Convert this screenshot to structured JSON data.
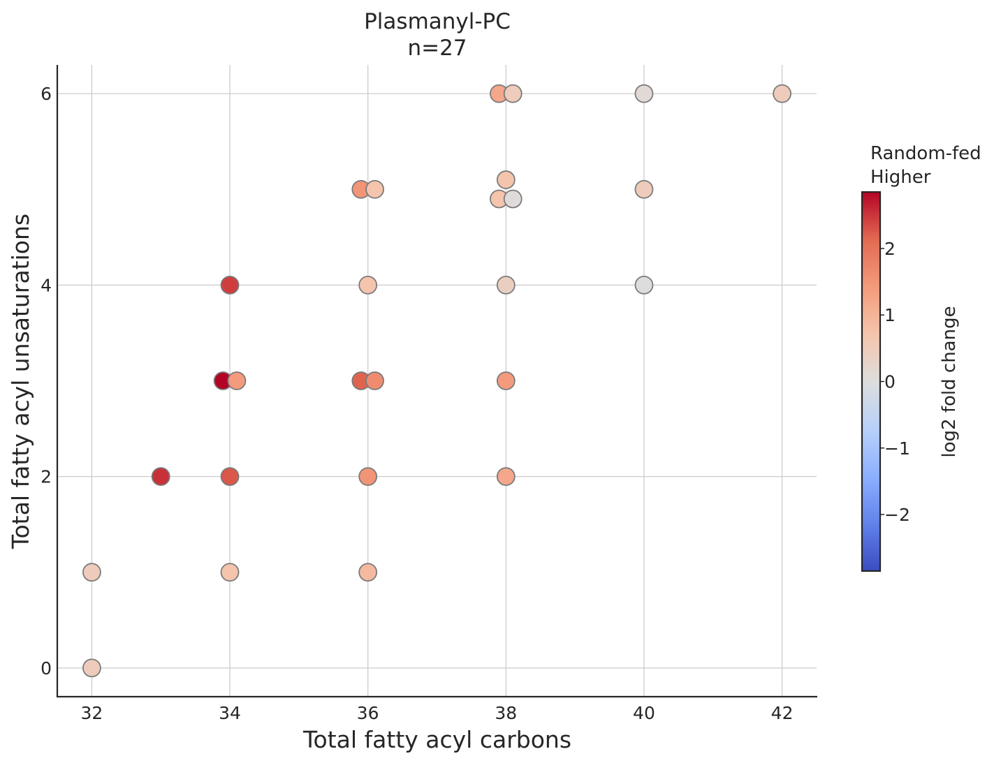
{
  "chart_data": {
    "type": "scatter",
    "title": "Plasmanyl-PC",
    "subtitle": "n=27",
    "xlabel": "Total fatty acyl carbons",
    "ylabel": "Total fatty acyl unsaturations",
    "xlim": [
      31.5,
      42.5
    ],
    "ylim": [
      -0.3,
      6.3
    ],
    "xticks": [
      32,
      34,
      36,
      38,
      40,
      42
    ],
    "yticks": [
      0,
      2,
      4,
      6
    ],
    "grid": true,
    "colormap": "coolwarm",
    "colorbar": {
      "label": "log2 fold change",
      "title_lines": [
        "Random-fed",
        "Higher"
      ],
      "range": [
        -2.85,
        2.85
      ],
      "ticks": [
        -2,
        -1,
        0,
        1,
        2
      ],
      "tick_labels": [
        "−2",
        "−1",
        "0",
        "1",
        "2"
      ]
    },
    "points": [
      {
        "x": 32,
        "y": 0,
        "value": 0.5
      },
      {
        "x": 32,
        "y": 1,
        "value": 0.5
      },
      {
        "x": 33,
        "y": 2,
        "value": 2.5
      },
      {
        "x": 34,
        "y": 2,
        "value": 2.2
      },
      {
        "x": 33.9,
        "y": 3,
        "value": 2.85
      },
      {
        "x": 34.1,
        "y": 3,
        "value": 1.4
      },
      {
        "x": 34,
        "y": 4,
        "value": 2.4
      },
      {
        "x": 34,
        "y": 1,
        "value": 0.7
      },
      {
        "x": 36,
        "y": 1,
        "value": 0.9
      },
      {
        "x": 36,
        "y": 2,
        "value": 1.5
      },
      {
        "x": 35.9,
        "y": 3,
        "value": 2.1
      },
      {
        "x": 36.1,
        "y": 3,
        "value": 1.6
      },
      {
        "x": 36,
        "y": 4,
        "value": 0.7
      },
      {
        "x": 35.9,
        "y": 5,
        "value": 1.5
      },
      {
        "x": 36.1,
        "y": 5,
        "value": 0.7
      },
      {
        "x": 38,
        "y": 2,
        "value": 1.2
      },
      {
        "x": 38,
        "y": 3,
        "value": 1.4
      },
      {
        "x": 38,
        "y": 4,
        "value": 0.4
      },
      {
        "x": 37.9,
        "y": 4.9,
        "value": 0.7
      },
      {
        "x": 38.1,
        "y": 4.9,
        "value": 0.05
      },
      {
        "x": 38,
        "y": 5.1,
        "value": 0.7
      },
      {
        "x": 37.9,
        "y": 6,
        "value": 1.2
      },
      {
        "x": 38.1,
        "y": 6,
        "value": 0.5
      },
      {
        "x": 40,
        "y": 4,
        "value": 0.0
      },
      {
        "x": 40,
        "y": 5,
        "value": 0.5
      },
      {
        "x": 40,
        "y": 6,
        "value": 0.1
      },
      {
        "x": 42,
        "y": 6,
        "value": 0.5
      }
    ]
  }
}
